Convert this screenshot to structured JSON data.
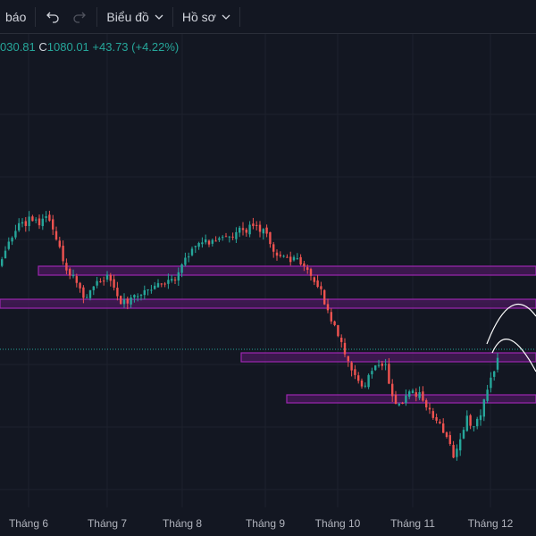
{
  "toolbar": {
    "alert_label": "báo",
    "undo_icon": "undo-icon",
    "redo_icon": "redo-icon",
    "chart_menu_label": "Biểu đồ",
    "profile_menu_label": "Hồ sơ"
  },
  "ohlc": {
    "open_partial": "030.81",
    "close_label": "C",
    "close_value": "1080.01",
    "change": "+43.73 (+4.22%)"
  },
  "colors": {
    "background": "#131722",
    "up": "#26a69a",
    "down": "#ef5350",
    "zone_border": "#9c27b0",
    "zone_fill": "#4a1a5c",
    "grid": "#1e222d",
    "price_line": "#26a69a"
  },
  "x_axis": {
    "labels": [
      "Tháng 6",
      "Tháng 7",
      "Tháng 8",
      "Tháng 9",
      "Tháng 10",
      "Tháng 11",
      "Tháng 12"
    ]
  }
}
